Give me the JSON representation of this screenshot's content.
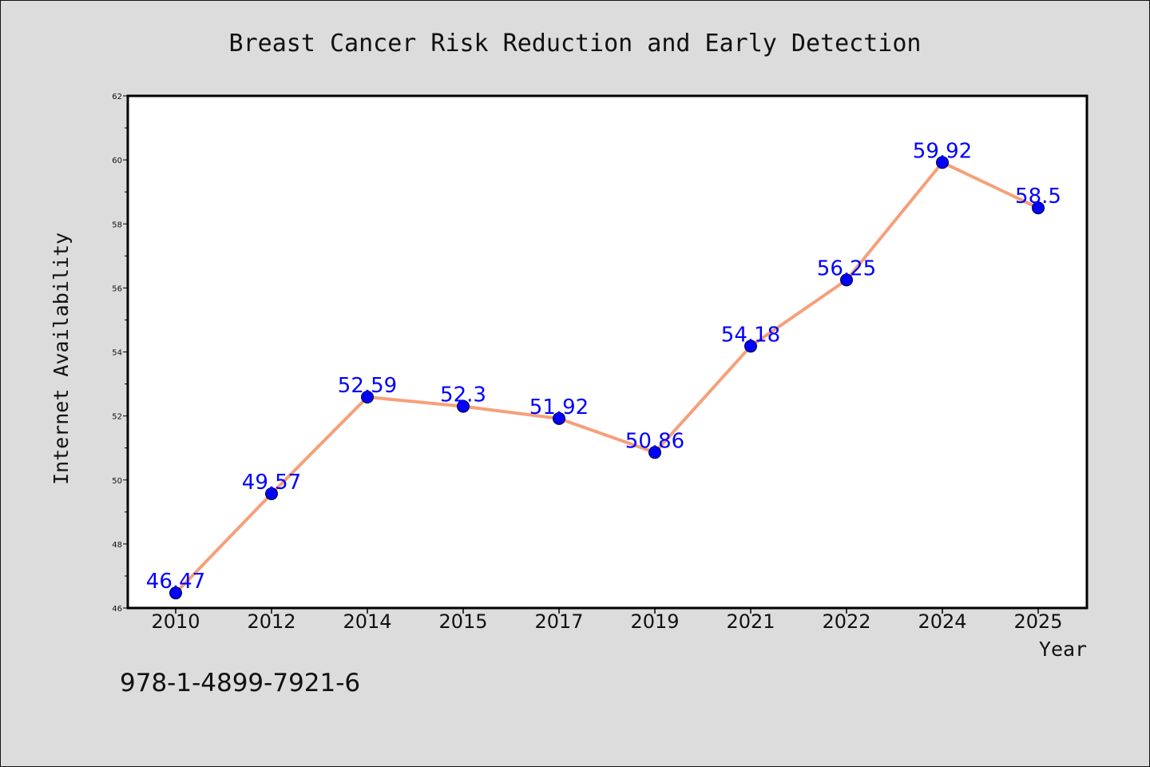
{
  "chart_data": {
    "type": "line",
    "title": "Breast Cancer Risk Reduction and Early Detection",
    "xlabel": "Year",
    "ylabel": "Internet Availability",
    "categories": [
      "2010",
      "2012",
      "2014",
      "2015",
      "2017",
      "2019",
      "2021",
      "2022",
      "2024",
      "2025"
    ],
    "series": [
      {
        "values": [
          46.47,
          49.57,
          52.59,
          52.3,
          51.92,
          50.86,
          54.18,
          56.25,
          59.92,
          58.5
        ],
        "labels": [
          "46.47",
          "49.57",
          "52.59",
          "52.3",
          "51.92",
          "50.86",
          "54.18",
          "56.25",
          "59.92",
          "58.5"
        ],
        "line_color": "#f5a07a",
        "marker_color": "#0000ff"
      }
    ],
    "ylim": [
      46,
      62
    ],
    "yticks": [
      "46",
      "48",
      "50",
      "52",
      "54",
      "56",
      "58",
      "60",
      "62"
    ],
    "grid": false,
    "legend": "none"
  },
  "footnote": "978-1-4899-7921-6"
}
